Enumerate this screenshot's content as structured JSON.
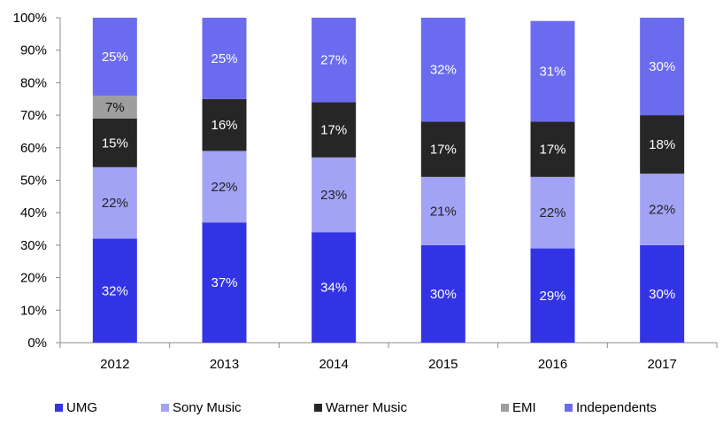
{
  "chart_data": {
    "type": "bar",
    "stacked": true,
    "categories": [
      "2012",
      "2013",
      "2014",
      "2015",
      "2016",
      "2017"
    ],
    "series": [
      {
        "name": "UMG",
        "color": "#3333e6",
        "label_color": "#ffffff",
        "values": [
          32,
          37,
          34,
          30,
          29,
          30
        ],
        "labels": [
          "32%",
          "37%",
          "34%",
          "30%",
          "29%",
          "30%"
        ]
      },
      {
        "name": "Sony Music",
        "color": "#a3a3f5",
        "label_color": "#222222",
        "values": [
          22,
          22,
          23,
          21,
          22,
          22
        ],
        "labels": [
          "22%",
          "22%",
          "23%",
          "21%",
          "22%",
          "22%"
        ]
      },
      {
        "name": "Warner Music",
        "color": "#262626",
        "label_color": "#ffffff",
        "values": [
          15,
          16,
          17,
          17,
          17,
          18
        ],
        "labels": [
          "15%",
          "16%",
          "17%",
          "17%",
          "17%",
          "18%"
        ]
      },
      {
        "name": "EMI",
        "color": "#9e9e9e",
        "label_color": "#111111",
        "values": [
          7,
          0,
          0,
          0,
          0,
          0
        ],
        "labels": [
          "7%",
          "",
          "",
          "",
          "",
          ""
        ]
      },
      {
        "name": "Independents",
        "color": "#6b6bf0",
        "label_color": "#ffffff",
        "values": [
          25,
          25,
          27,
          32,
          31,
          30
        ],
        "labels": [
          "25%",
          "25%",
          "27%",
          "32%",
          "31%",
          "30%"
        ]
      }
    ],
    "ylim": [
      0,
      100
    ],
    "yticks": [
      "0%",
      "10%",
      "20%",
      "30%",
      "40%",
      "50%",
      "60%",
      "70%",
      "80%",
      "90%",
      "100%"
    ],
    "title": "",
    "xlabel": "",
    "ylabel": "",
    "grid": false,
    "legend_position": "bottom"
  }
}
